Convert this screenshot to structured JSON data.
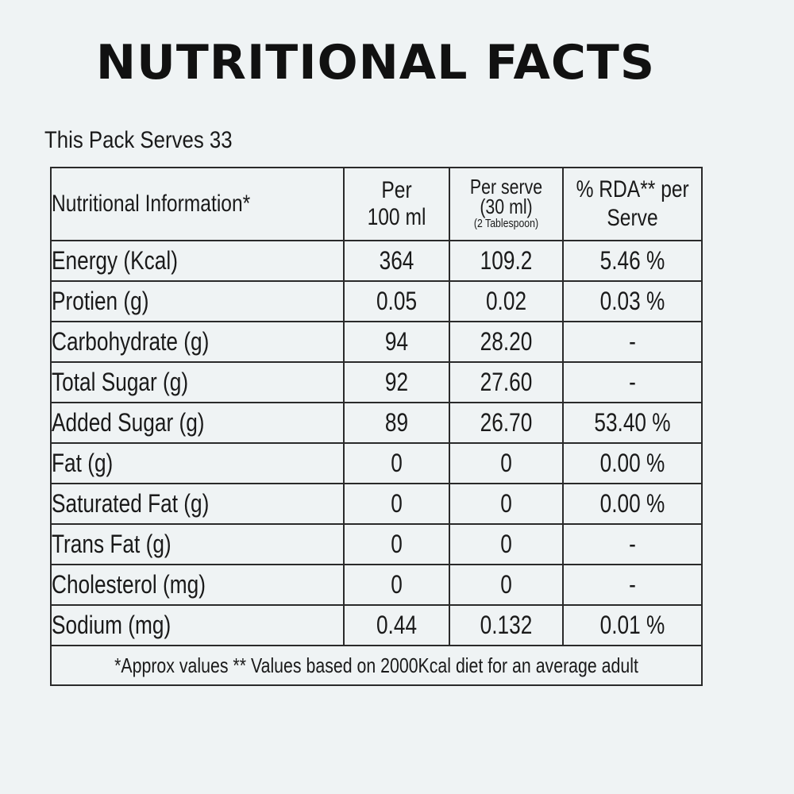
{
  "title": "NUTRITIONAL FACTS",
  "serves": "This Pack Serves 33",
  "table": {
    "headers": {
      "name": "Nutritional Information*",
      "per100_line1": "Per",
      "per100_line2": "100 ml",
      "serve_line1": "Per serve",
      "serve_line2": "(30 ml)",
      "serve_line3": "(2 Tablespoon)",
      "rda_line1": "% RDA** per",
      "rda_line2": "Serve"
    },
    "rows": [
      {
        "name": "Energy (Kcal)",
        "per100": "364",
        "serve": "109.2",
        "rda": "5.46 %"
      },
      {
        "name": "Protien (g)",
        "per100": "0.05",
        "serve": "0.02",
        "rda": "0.03 %"
      },
      {
        "name": "Carbohydrate (g)",
        "per100": "94",
        "serve": "28.20",
        "rda": "-"
      },
      {
        "name": "Total Sugar (g)",
        "per100": "92",
        "serve": "27.60",
        "rda": "-"
      },
      {
        "name": "Added Sugar (g)",
        "per100": "89",
        "serve": "26.70",
        "rda": "53.40 %"
      },
      {
        "name": "Fat (g)",
        "per100": "0",
        "serve": "0",
        "rda": "0.00 %"
      },
      {
        "name": "Saturated Fat (g)",
        "per100": "0",
        "serve": "0",
        "rda": "0.00 %"
      },
      {
        "name": "Trans Fat (g)",
        "per100": "0",
        "serve": "0",
        "rda": "-"
      },
      {
        "name": "Cholesterol (mg)",
        "per100": "0",
        "serve": "0",
        "rda": "-"
      },
      {
        "name": "Sodium (mg)",
        "per100": "0.44",
        "serve": "0.132",
        "rda": "0.01 %"
      }
    ],
    "footnote": "*Approx values ** Values based on 2000Kcal diet for an average adult"
  }
}
